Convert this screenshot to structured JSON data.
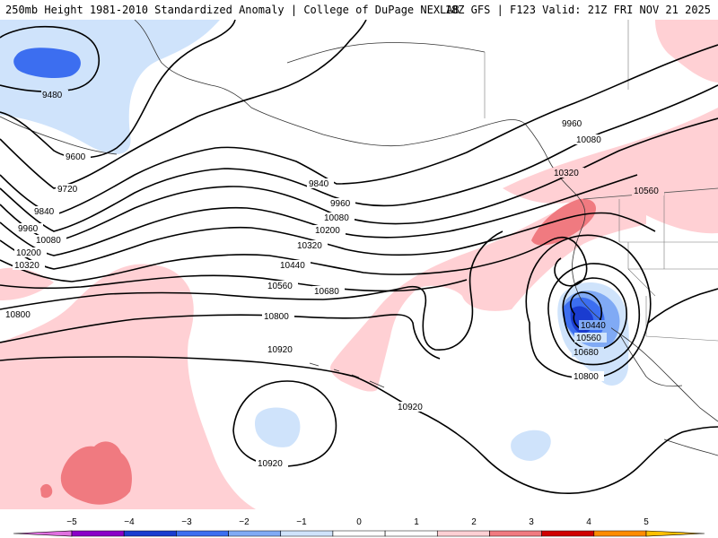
{
  "header": {
    "title_left": "250mb Height 1981-2010 Standardized Anomaly | College of DuPage NEXLAB",
    "title_right": "18Z GFS | F123 Valid: 21Z FRI NOV 21 2025"
  },
  "contour_labels": {
    "c9480": "9480",
    "c9600": "9600",
    "c9720": "9720",
    "c9840_w": "9840",
    "c9960_w": "9960",
    "c10080_w": "10080",
    "c10200_w": "10200",
    "c10320_w": "10320",
    "c9840_c": "9840",
    "c9960_c": "9960",
    "c10080_c": "10080",
    "c10200_c": "10200",
    "c10320_c": "10320",
    "c10440_c": "10440",
    "c10560_c": "10560",
    "c10680_c": "10680",
    "c10800_w": "10800",
    "c10800_c": "10800",
    "c10920_c": "10920",
    "c10920_s": "10920",
    "c10920_e": "10920",
    "c9960_e": "9960",
    "c10080_e": "10080",
    "c10320_e": "10320",
    "c10560_e": "10560",
    "c10440_low": "10440",
    "c10560_low": "10560",
    "c10680_low": "10680",
    "c10800_e": "10800"
  },
  "colorbar": {
    "ticks": [
      "−5",
      "−4",
      "−3",
      "−2",
      "−1",
      "0",
      "1",
      "2",
      "3",
      "4",
      "5"
    ],
    "colors": [
      "#e070e0",
      "#8a00c8",
      "#1a3cd0",
      "#3c6ef0",
      "#80aaf5",
      "#cfe3fb",
      "#ffffff",
      "#ffffff",
      "#ffd0d4",
      "#f07a80",
      "#d00000",
      "#ff8c00",
      "#ffc000"
    ]
  }
}
